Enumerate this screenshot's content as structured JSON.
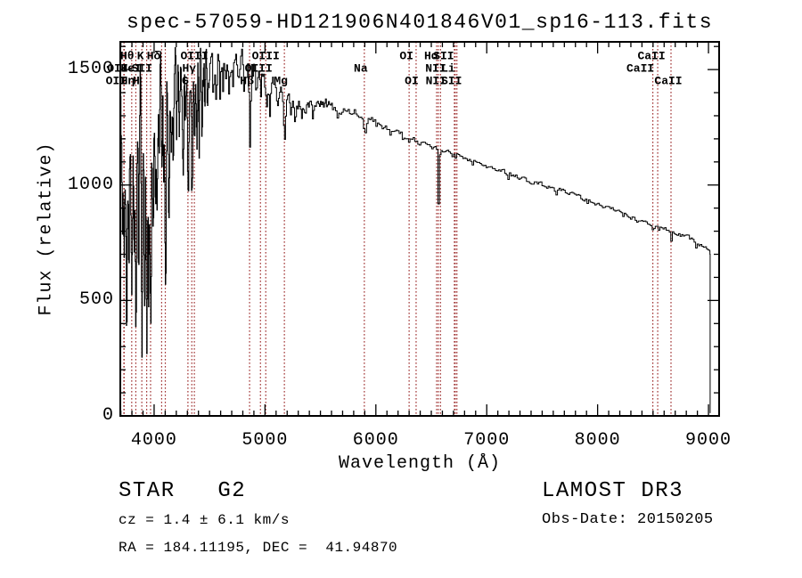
{
  "title": "spec-57059-HD121906N401846V01_sp16-113.fits",
  "annotations": {
    "class_line": "STAR   G2",
    "cz_line": "cz = 1.4 ± 6.1 km/s",
    "radec_line": "RA = 184.11195, DEC =  41.94870",
    "survey": "LAMOST DR3",
    "obsdate": "Obs-Date: 20150205"
  },
  "colors": {
    "spectrum": "#000000",
    "axis": "#000000",
    "line_marker": "#a03232",
    "background": "#ffffff"
  },
  "chart_data": {
    "type": "line",
    "title": "spec-57059-HD121906N401846V01_sp16-113.fits",
    "xlabel": "Wavelength (Å)",
    "ylabel": "Flux (relative)",
    "xlim": [
      3695,
      9096
    ],
    "ylim": [
      0,
      1620
    ],
    "x_major_ticks": [
      4000,
      5000,
      6000,
      7000,
      8000,
      9000
    ],
    "y_major_ticks": [
      0,
      500,
      1000,
      1500
    ],
    "x_minor_step": 100,
    "y_minor_step": 100,
    "grid": false,
    "legend": "none",
    "line_markers": [
      {
        "label": "OII",
        "wavelength": 3727,
        "row": 2,
        "dx": -7
      },
      {
        "label": "OII",
        "wavelength": 3730,
        "row": 3,
        "dx": -9
      },
      {
        "label": "Hθ",
        "wavelength": 3798,
        "row": 1,
        "dx": -5
      },
      {
        "label": "Hη",
        "wavelength": 3835,
        "row": 3,
        "dx": -9
      },
      {
        "label": "HeI",
        "wavelength": 3889,
        "row": 2,
        "dx": -12
      },
      {
        "label": "K",
        "wavelength": 3933,
        "row": 1,
        "dx": -7
      },
      {
        "label": "H",
        "wavelength": 3968,
        "row": 3,
        "dx": -16
      },
      {
        "label": "SII",
        "wavelength": 4068,
        "row": 2,
        "dx": -22
      },
      {
        "label": "Hδ",
        "wavelength": 4101,
        "row": 1,
        "dx": -13
      },
      {
        "label": "G",
        "wavelength": 4305,
        "row": 3,
        "dx": -3
      },
      {
        "label": "Hγ",
        "wavelength": 4340,
        "row": 2,
        "dx": -3
      },
      {
        "label": "OIII",
        "wavelength": 4363,
        "row": 1,
        "dx": 0
      },
      {
        "label": "Hβ",
        "wavelength": 4861,
        "row": 3,
        "dx": -3
      },
      {
        "label": "OIII",
        "wavelength": 4959,
        "row": 2,
        "dx": -2
      },
      {
        "label": "OIII",
        "wavelength": 5007,
        "row": 1,
        "dx": 0
      },
      {
        "label": "Mg",
        "wavelength": 5175,
        "row": 3,
        "dx": -4
      },
      {
        "label": "Na",
        "wavelength": 5896,
        "row": 2,
        "dx": -4
      },
      {
        "label": "OI",
        "wavelength": 6300,
        "row": 1,
        "dx": -3
      },
      {
        "label": "OI",
        "wavelength": 6363,
        "row": 3,
        "dx": -5
      },
      {
        "label": "NII",
        "wavelength": 6548,
        "row": 2,
        "dx": -1
      },
      {
        "label": "Hα",
        "wavelength": 6563,
        "row": 1,
        "dx": -8
      },
      {
        "label": "NII",
        "wavelength": 6583,
        "row": 3,
        "dx": -5
      },
      {
        "label": "Li",
        "wavelength": 6708,
        "row": 2,
        "dx": -7
      },
      {
        "label": "SII",
        "wavelength": 6716,
        "row": 1,
        "dx": -13
      },
      {
        "label": "SII",
        "wavelength": 6731,
        "row": 3,
        "dx": -6
      },
      {
        "label": "CaII",
        "wavelength": 8498,
        "row": 2,
        "dx": -14
      },
      {
        "label": "CaII",
        "wavelength": 8542,
        "row": 1,
        "dx": -7
      },
      {
        "label": "CaII",
        "wavelength": 8662,
        "row": 3,
        "dx": -3
      }
    ],
    "envelope": [
      [
        3695,
        1250
      ],
      [
        3740,
        1290
      ],
      [
        3780,
        1330
      ],
      [
        3830,
        1370
      ],
      [
        3880,
        1410
      ],
      [
        3930,
        1430
      ],
      [
        3980,
        1450
      ],
      [
        4040,
        1465
      ],
      [
        4100,
        1470
      ],
      [
        4160,
        1480
      ],
      [
        4220,
        1495
      ],
      [
        4280,
        1500
      ],
      [
        4340,
        1505
      ],
      [
        4400,
        1510
      ],
      [
        4460,
        1515
      ],
      [
        4520,
        1520
      ],
      [
        4580,
        1530
      ],
      [
        4640,
        1540
      ],
      [
        4700,
        1545
      ],
      [
        4760,
        1540
      ],
      [
        4820,
        1530
      ],
      [
        4880,
        1515
      ],
      [
        4940,
        1480
      ],
      [
        5000,
        1450
      ],
      [
        5060,
        1425
      ],
      [
        5120,
        1405
      ],
      [
        5180,
        1392
      ],
      [
        5240,
        1372
      ],
      [
        5300,
        1360
      ],
      [
        5360,
        1355
      ],
      [
        5420,
        1352
      ],
      [
        5480,
        1348
      ],
      [
        5540,
        1342
      ],
      [
        5600,
        1338
      ],
      [
        5660,
        1338
      ],
      [
        5720,
        1330
      ],
      [
        5780,
        1320
      ],
      [
        5840,
        1310
      ],
      [
        5900,
        1290
      ],
      [
        5960,
        1278
      ],
      [
        6020,
        1262
      ],
      [
        6080,
        1250
      ],
      [
        6140,
        1238
      ],
      [
        6200,
        1225
      ],
      [
        6260,
        1210
      ],
      [
        6320,
        1195
      ],
      [
        6380,
        1185
      ],
      [
        6440,
        1175
      ],
      [
        6500,
        1165
      ],
      [
        6560,
        1152
      ],
      [
        6620,
        1140
      ],
      [
        6680,
        1133
      ],
      [
        6740,
        1128
      ],
      [
        6800,
        1118
      ],
      [
        6860,
        1108
      ],
      [
        6920,
        1098
      ],
      [
        6980,
        1088
      ],
      [
        7060,
        1072
      ],
      [
        7140,
        1058
      ],
      [
        7220,
        1044
      ],
      [
        7300,
        1030
      ],
      [
        7380,
        1016
      ],
      [
        7460,
        1004
      ],
      [
        7540,
        995
      ],
      [
        7620,
        988
      ],
      [
        7700,
        975
      ],
      [
        7780,
        960
      ],
      [
        7860,
        942
      ],
      [
        7940,
        928
      ],
      [
        8020,
        915
      ],
      [
        8100,
        900
      ],
      [
        8180,
        885
      ],
      [
        8260,
        868
      ],
      [
        8340,
        852
      ],
      [
        8420,
        840
      ],
      [
        8500,
        828
      ],
      [
        8580,
        815
      ],
      [
        8660,
        802
      ],
      [
        8740,
        788
      ],
      [
        8820,
        770
      ],
      [
        8900,
        748
      ],
      [
        8960,
        728
      ],
      [
        9010,
        706
      ]
    ],
    "absorption_features": [
      [
        3712,
        420,
        5
      ],
      [
        3727,
        560,
        6
      ],
      [
        3750,
        870,
        5
      ],
      [
        3770,
        710,
        5
      ],
      [
        3798,
        880,
        6
      ],
      [
        3820,
        660,
        5
      ],
      [
        3835,
        980,
        6
      ],
      [
        3860,
        820,
        5
      ],
      [
        3889,
        990,
        6
      ],
      [
        3912,
        780,
        5
      ],
      [
        3933,
        1080,
        7
      ],
      [
        3950,
        840,
        5
      ],
      [
        3968,
        1030,
        7
      ],
      [
        3990,
        760,
        5
      ],
      [
        4010,
        520,
        5
      ],
      [
        4026,
        640,
        5
      ],
      [
        4045,
        420,
        4
      ],
      [
        4068,
        520,
        5
      ],
      [
        4085,
        430,
        4
      ],
      [
        4101,
        1000,
        6
      ],
      [
        4132,
        570,
        5
      ],
      [
        4152,
        400,
        4
      ],
      [
        4172,
        450,
        5
      ],
      [
        4200,
        330,
        4
      ],
      [
        4226,
        420,
        5
      ],
      [
        4260,
        350,
        5
      ],
      [
        4280,
        280,
        4
      ],
      [
        4305,
        510,
        7
      ],
      [
        4340,
        600,
        6
      ],
      [
        4363,
        280,
        4
      ],
      [
        4383,
        380,
        5
      ],
      [
        4405,
        310,
        4
      ],
      [
        4430,
        250,
        4
      ],
      [
        4455,
        240,
        4
      ],
      [
        4480,
        200,
        4
      ],
      [
        4530,
        190,
        5
      ],
      [
        4560,
        160,
        4
      ],
      [
        4590,
        150,
        4
      ],
      [
        4620,
        140,
        4
      ],
      [
        4668,
        160,
        5
      ],
      [
        4710,
        130,
        4
      ],
      [
        4760,
        110,
        4
      ],
      [
        4810,
        100,
        4
      ],
      [
        4861,
        400,
        6
      ],
      [
        4920,
        140,
        5
      ],
      [
        4957,
        100,
        4
      ],
      [
        5015,
        110,
        5
      ],
      [
        5040,
        90,
        4
      ],
      [
        5110,
        80,
        4
      ],
      [
        5175,
        190,
        8
      ],
      [
        5230,
        70,
        4
      ],
      [
        5270,
        100,
        5
      ],
      [
        5330,
        60,
        4
      ],
      [
        5430,
        50,
        4
      ],
      [
        5530,
        40,
        4
      ],
      [
        5650,
        35,
        4
      ],
      [
        5780,
        30,
        4
      ],
      [
        5896,
        85,
        6
      ],
      [
        6000,
        25,
        4
      ],
      [
        6122,
        35,
        4
      ],
      [
        6240,
        25,
        4
      ],
      [
        6300,
        30,
        4
      ],
      [
        6495,
        25,
        4
      ],
      [
        6563,
        285,
        5
      ],
      [
        6710,
        20,
        4
      ],
      [
        6870,
        25,
        5
      ],
      [
        7000,
        18,
        4
      ],
      [
        7190,
        20,
        4
      ],
      [
        7450,
        15,
        4
      ],
      [
        7620,
        28,
        6
      ],
      [
        7900,
        15,
        4
      ],
      [
        8230,
        25,
        5
      ],
      [
        8350,
        18,
        4
      ],
      [
        8498,
        40,
        4
      ],
      [
        8542,
        48,
        4
      ],
      [
        8662,
        48,
        4
      ],
      [
        8750,
        20,
        4
      ],
      [
        8880,
        25,
        5
      ]
    ],
    "noise_profile": [
      [
        4000,
        145
      ],
      [
        4250,
        115
      ],
      [
        4500,
        90
      ],
      [
        4800,
        60
      ],
      [
        5100,
        48
      ],
      [
        5400,
        30
      ],
      [
        5700,
        20
      ],
      [
        6000,
        15
      ],
      [
        6700,
        12
      ],
      [
        7500,
        9
      ],
      [
        9020,
        8
      ]
    ],
    "noise_seed": 1234567,
    "edge": {
      "start_wavelength": 3695,
      "start_flux": 15,
      "end_wavelength": 9015,
      "end_flux": 12,
      "last_sample": 9010
    }
  }
}
